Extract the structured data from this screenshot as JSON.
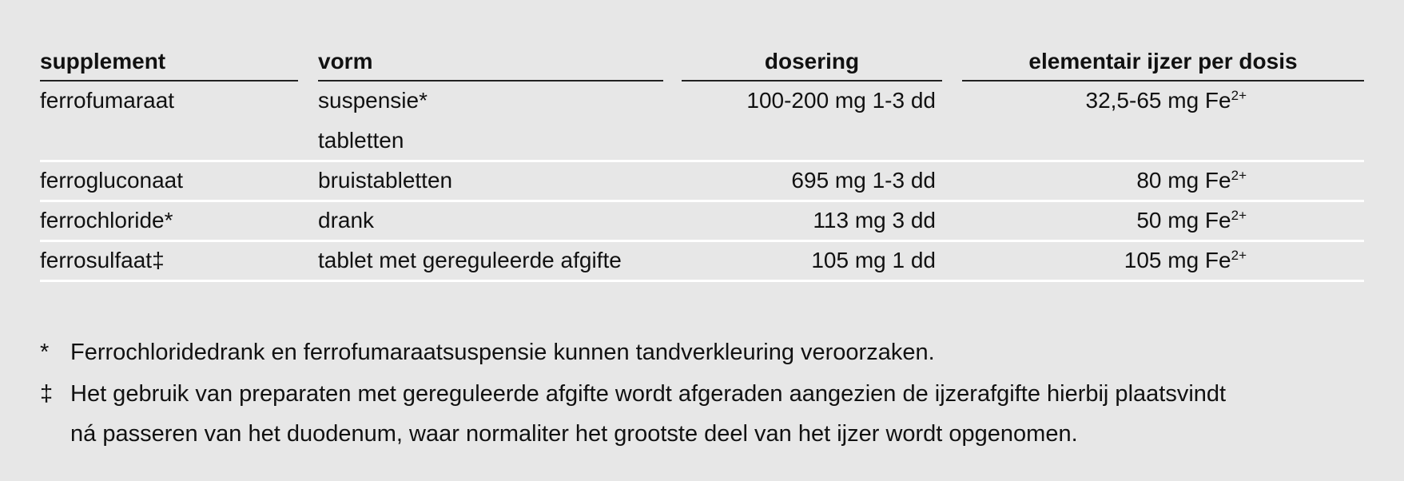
{
  "table": {
    "headers": [
      "supplement",
      "vorm",
      "dosering",
      "elementair ijzer per dosis"
    ],
    "rows": [
      {
        "supplement": "ferrofumaraat",
        "vorm": [
          "suspensie*",
          "tabletten"
        ],
        "dosering": "100-200 mg 1-3 dd",
        "ijzer": "32,5-65 mg Fe",
        "ijzer_sup": "2+"
      },
      {
        "supplement": "ferrogluconaat",
        "vorm": [
          "bruistabletten"
        ],
        "dosering": "695 mg 1-3 dd",
        "ijzer": "80 mg Fe",
        "ijzer_sup": "2+"
      },
      {
        "supplement": "ferrochloride*",
        "vorm": [
          "drank"
        ],
        "dosering": "113 mg 3 dd",
        "ijzer": "50 mg Fe",
        "ijzer_sup": "2+"
      },
      {
        "supplement": "ferrosulfaat‡",
        "vorm": [
          "tablet met gereguleerde afgifte"
        ],
        "dosering": "105 mg 1 dd",
        "ijzer": "105 mg Fe",
        "ijzer_sup": "2+"
      }
    ]
  },
  "footnotes": [
    {
      "marker": "*",
      "lines": [
        "Ferrochloridedrank en ferrofumaraatsuspensie kunnen tandverkleuring veroorzaken."
      ]
    },
    {
      "marker": "‡",
      "lines": [
        "Het gebruik van preparaten met gereguleerde afgifte wordt afgeraden aangezien de ijzerafgifte hierbij plaatsvindt",
        "ná passeren van het duodenum, waar normaliter het grootste deel van het ijzer wordt opgenomen."
      ]
    }
  ]
}
